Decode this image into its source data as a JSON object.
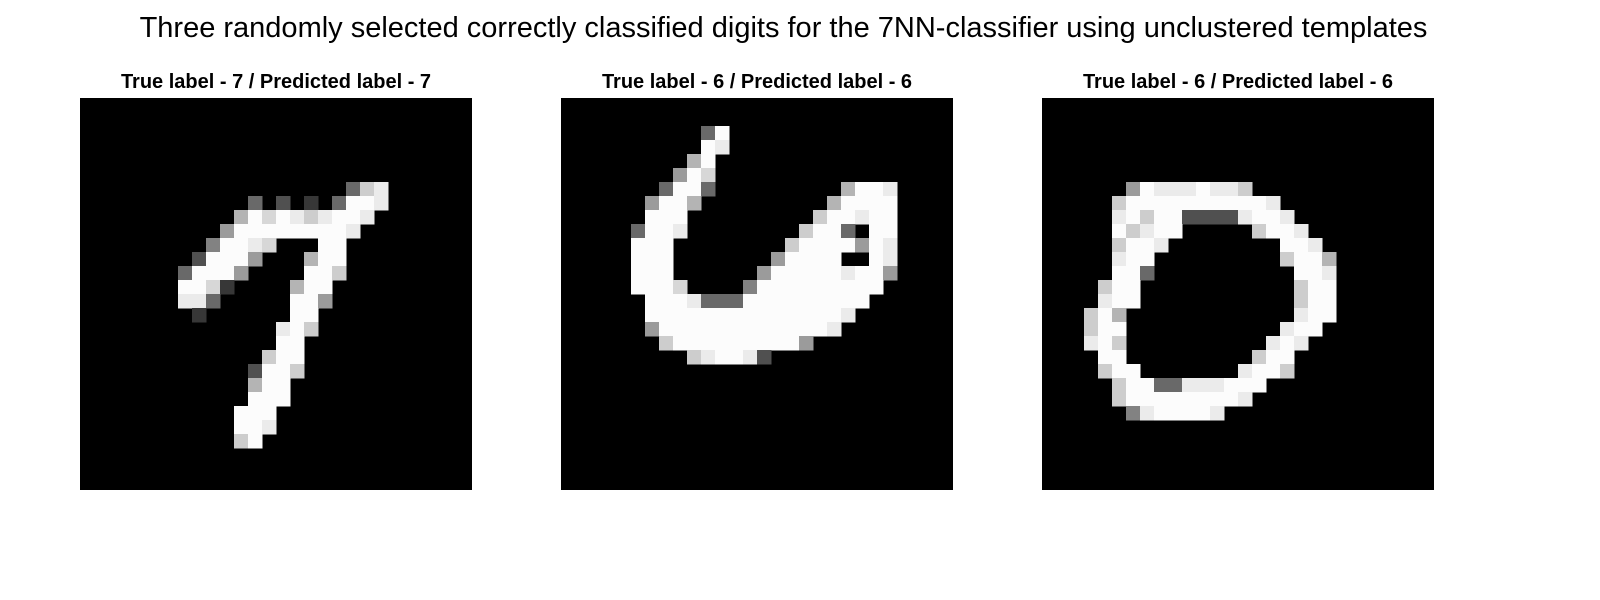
{
  "figure": {
    "title": "Three randomly selected correctly classified digits for the 7NN-classifier using unclustered templates"
  },
  "colors": {
    "background": "#000000",
    "stroke": "#ffffff"
  },
  "panels": [
    {
      "title": "True label - 7 / Predicted label - 7",
      "true_label": "7",
      "predicted_label": "7",
      "grid": [
        "............................",
        "............................",
        "............................",
        "............................",
        "............................",
        "............................",
        "...................48%......",
        "............4.3.2.4@@%......",
        "...........7@#@%8%@@%.......",
        "..........6@@@@@@@@%........",
        ".........5@@%#...@@.........",
        "........3@@@6...7@@.........",
        ".......4@@@6....@@8.........",
        ".......@@#2....7@@..........",
        ".......%%4.....@@6..........",
        "........2......@@...........",
        "..............%@8...........",
        "..............@@............",
        ".............8@@............",
        "............3@@8............",
        "............7@@.............",
        "............@@@.............",
        "...........@@@..............",
        "...........@@%..............",
        "...........8@...............",
        "............................",
        "............................",
        "............................"
      ]
    },
    {
      "title": "True label - 6 / Predicted label - 6",
      "true_label": "6",
      "predicted_label": "6",
      "grid": [
        "............................",
        "............................",
        "..........4@................",
        "..........@%................",
        ".........7@.................",
        "........6@#.................",
        ".......4@@4.........7@@%....",
        "......6@@7.........7@@@@....",
        "......@@@.........8@@%@@....",
        ".....4@@%........8@@4.@@....",
        ".....@@@........8@@@@6@%....",
        ".....@@@.......6@@@@..@%....",
        ".....@@@......6@@@@@%@@6....",
        ".....@@@#....5@@@@@@@@@.....",
        "......@@@%444@@@@@@@@@......",
        "......@@@@@@@@@@@@@@%.......",
        "......6@@@@@@@@@@@@%........",
        ".......8@@@@@@@@@6..........",
        ".........8%@@%3.............",
        "............................",
        "............................",
        "............................",
        "............................",
        "............................",
        "............................",
        "............................",
        "............................",
        "............................"
      ]
    },
    {
      "title": "True label - 6 / Predicted label - 6",
      "true_label": "6",
      "predicted_label": "6",
      "grid": [
        "............................",
        "............................",
        "............................",
        "............................",
        "............................",
        "............................",
        "......6@%%%@%%8.............",
        ".....8@@@@@@@@@@%...........",
        ".....%@8@@3333%@@%..........",
        ".....@8%@@.....8@@%.........",
        ".....8@@%........@@%........",
        ".....%@@.........8@@7.......",
        ".....@@4..........@@%.......",
        "....8@@...........8@@.......",
        "....%@@...........8@@.......",
        "...8@7............%@@.......",
        "...8@@...........%@@........",
        "...%@8..........%@%.........",
        "....@@.........8@@..........",
        "....8@@.......%@@8..........",
        ".....8@@44%%%@@@............",
        ".....8@@@@@@@@%.............",
        "......5%@@@@%...............",
        "............................",
        "............................",
        "............................",
        "............................",
        "............................"
      ]
    }
  ]
}
